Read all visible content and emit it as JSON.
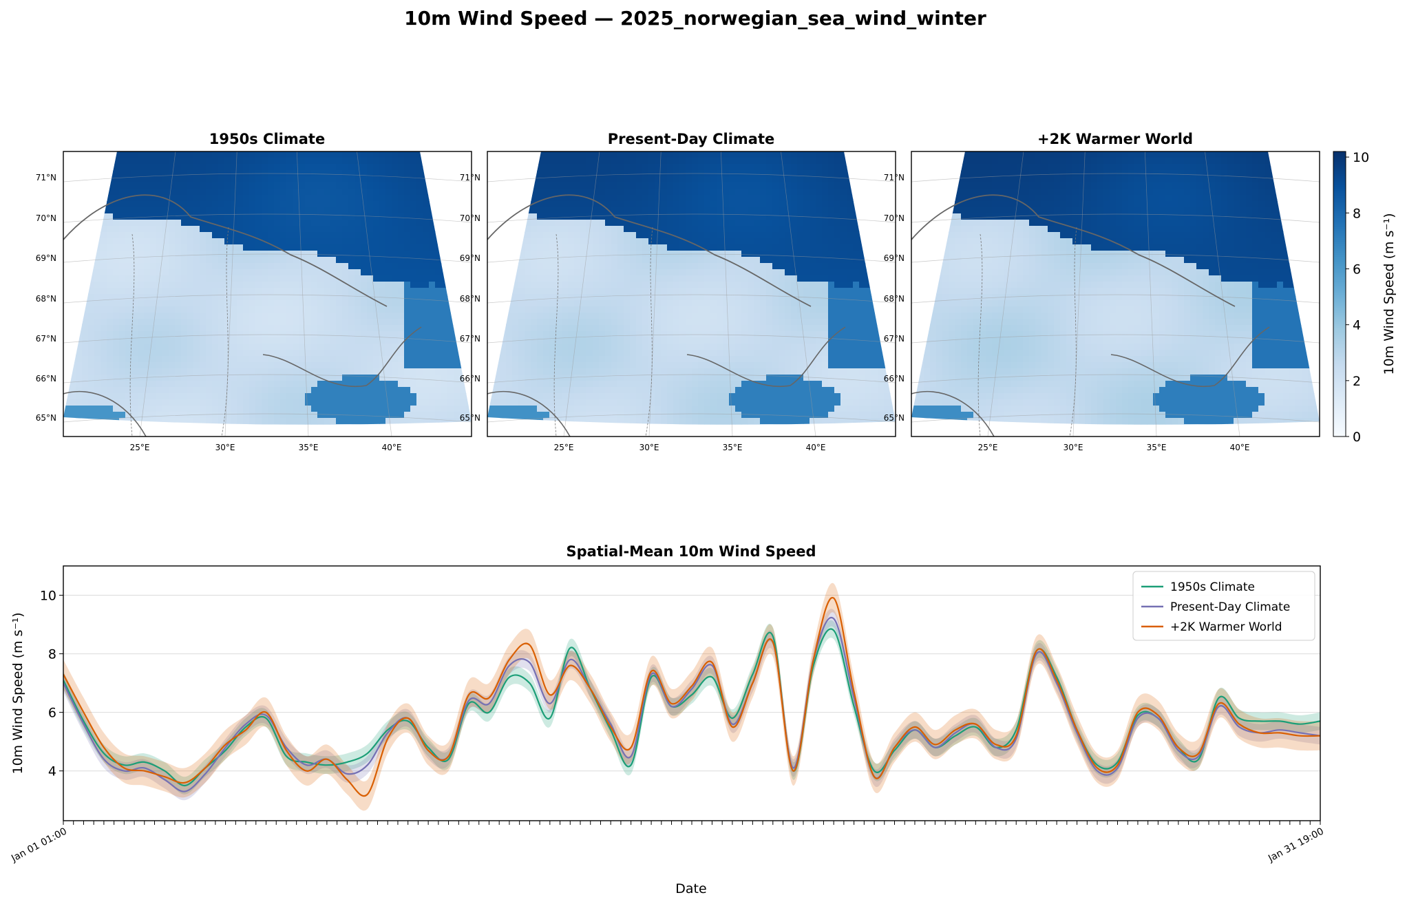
{
  "figure": {
    "title": "10m Wind Speed — 2025_norwegian_sea_wind_winter"
  },
  "maps": {
    "panels": [
      {
        "title": "1950s Climate",
        "variant": 0
      },
      {
        "title": "Present-Day Climate",
        "variant": 1
      },
      {
        "title": "+2K Warmer World",
        "variant": 2
      }
    ],
    "lat_labels": [
      "71°N",
      "70°N",
      "69°N",
      "68°N",
      "67°N",
      "66°N",
      "65°N"
    ],
    "lon_labels": [
      "25°E",
      "30°E",
      "35°E",
      "40°E"
    ],
    "colorbar": {
      "label": "10m Wind Speed (m s⁻¹)",
      "ticks": [
        "0",
        "2",
        "4",
        "6",
        "8",
        "10"
      ],
      "vmin": 0,
      "vmax": 10.2,
      "cmap": [
        "#f7fbff",
        "#deebf7",
        "#c6dbef",
        "#9ecae1",
        "#6baed6",
        "#4292c6",
        "#2171b5",
        "#08519c",
        "#08306b"
      ]
    },
    "coast_color": "#666666"
  },
  "chart_data": {
    "type": "line",
    "title": "Spatial-Mean 10m Wind Speed",
    "xlabel": "Date",
    "ylabel": "10m Wind Speed (m s⁻¹)",
    "ylim": [
      2.3,
      11.0
    ],
    "yticks": [
      4,
      6,
      8,
      10
    ],
    "grid": true,
    "legend_position": "top-right",
    "x_range": [
      "Jan 01 01:00",
      "Jan 31 19:00"
    ],
    "x_first_label": "Jan 01 01:00",
    "x_last_label": "Jan 31 19:00",
    "x_tick_count": 125,
    "x": [
      "Jan 01 00:00",
      "Jan 01 12:00",
      "Jan 02 00:00",
      "Jan 02 12:00",
      "Jan 03 00:00",
      "Jan 03 12:00",
      "Jan 04 00:00",
      "Jan 04 12:00",
      "Jan 05 00:00",
      "Jan 05 12:00",
      "Jan 06 00:00",
      "Jan 06 12:00",
      "Jan 07 00:00",
      "Jan 07 12:00",
      "Jan 08 00:00",
      "Jan 08 12:00",
      "Jan 09 00:00",
      "Jan 09 12:00",
      "Jan 10 00:00",
      "Jan 10 12:00",
      "Jan 11 00:00",
      "Jan 11 12:00",
      "Jan 12 00:00",
      "Jan 12 12:00",
      "Jan 13 00:00",
      "Jan 13 12:00",
      "Jan 14 00:00",
      "Jan 14 12:00",
      "Jan 15 00:00",
      "Jan 15 12:00",
      "Jan 16 00:00",
      "Jan 16 12:00",
      "Jan 17 00:00",
      "Jan 17 12:00",
      "Jan 18 00:00",
      "Jan 18 12:00",
      "Jan 19 00:00",
      "Jan 19 12:00",
      "Jan 20 00:00",
      "Jan 20 12:00",
      "Jan 21 00:00",
      "Jan 21 12:00",
      "Jan 22 00:00",
      "Jan 22 12:00",
      "Jan 23 00:00",
      "Jan 23 12:00",
      "Jan 24 00:00",
      "Jan 24 12:00",
      "Jan 25 00:00",
      "Jan 25 12:00",
      "Jan 26 00:00",
      "Jan 26 12:00",
      "Jan 27 00:00",
      "Jan 27 12:00",
      "Jan 28 00:00",
      "Jan 28 12:00",
      "Jan 29 00:00",
      "Jan 29 12:00",
      "Jan 30 00:00",
      "Jan 30 12:00",
      "Jan 31 00:00",
      "Jan 31 12:00",
      "Jan 31 19:00"
    ],
    "series": [
      {
        "name": "1950s Climate",
        "color": "#1b9e77",
        "band": 0.3,
        "values": [
          7.1,
          5.7,
          4.6,
          4.2,
          4.3,
          4.0,
          3.5,
          4.1,
          4.7,
          5.5,
          5.8,
          4.5,
          4.3,
          4.2,
          4.3,
          4.6,
          5.4,
          5.7,
          4.8,
          4.4,
          6.3,
          6.0,
          7.2,
          7.0,
          5.8,
          8.2,
          6.8,
          5.4,
          4.2,
          7.2,
          6.2,
          6.6,
          7.2,
          5.8,
          7.3,
          8.6,
          4.0,
          7.6,
          8.8,
          6.2,
          4.0,
          4.7,
          5.4,
          4.8,
          5.2,
          5.5,
          4.8,
          5.4,
          8.1,
          7.2,
          5.4,
          4.2,
          4.3,
          5.9,
          5.8,
          4.8,
          4.4,
          6.5,
          5.8,
          5.7,
          5.7,
          5.6,
          5.7
        ]
      },
      {
        "name": "Present-Day Climate",
        "color": "#7570b3",
        "band": 0.3,
        "values": [
          7.0,
          5.6,
          4.4,
          4.0,
          4.1,
          3.7,
          3.3,
          3.9,
          4.8,
          5.6,
          5.9,
          4.8,
          4.2,
          4.4,
          3.9,
          4.2,
          5.3,
          5.8,
          4.7,
          4.5,
          6.4,
          6.3,
          7.6,
          7.7,
          6.3,
          7.8,
          6.8,
          5.6,
          4.5,
          7.3,
          6.2,
          6.8,
          7.6,
          5.6,
          7.0,
          8.4,
          4.1,
          7.8,
          9.2,
          6.5,
          3.8,
          4.8,
          5.4,
          4.8,
          5.3,
          5.6,
          4.8,
          5.1,
          8.0,
          7.0,
          5.3,
          4.0,
          4.1,
          5.8,
          5.8,
          4.7,
          4.5,
          6.2,
          5.5,
          5.3,
          5.4,
          5.3,
          5.2
        ]
      },
      {
        "name": "+2K Warmer World",
        "color": "#d95f02",
        "band": 0.5,
        "values": [
          7.3,
          6.0,
          4.8,
          4.1,
          4.0,
          3.8,
          3.6,
          4.1,
          4.9,
          5.4,
          6.0,
          4.7,
          4.0,
          4.4,
          3.7,
          3.2,
          5.1,
          5.8,
          4.7,
          4.5,
          6.6,
          6.5,
          7.8,
          8.3,
          6.6,
          7.6,
          6.8,
          5.5,
          4.8,
          7.4,
          6.3,
          6.9,
          7.7,
          5.5,
          7.0,
          8.4,
          4.0,
          7.8,
          9.9,
          6.7,
          3.8,
          4.8,
          5.5,
          4.9,
          5.4,
          5.6,
          4.9,
          5.2,
          8.1,
          7.1,
          5.4,
          4.1,
          4.2,
          6.0,
          5.9,
          4.8,
          4.6,
          6.3,
          5.6,
          5.3,
          5.3,
          5.2,
          5.2
        ]
      }
    ]
  }
}
